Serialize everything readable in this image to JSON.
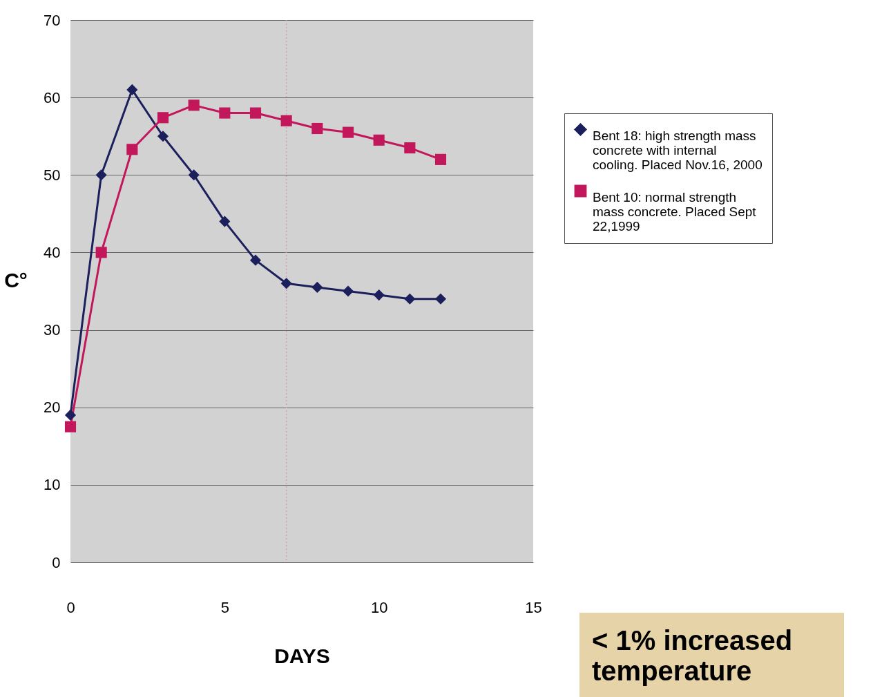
{
  "chart_data": {
    "type": "line",
    "xlabel": "DAYS",
    "ylabel": "C°",
    "xlim": [
      0,
      15
    ],
    "xticks": [
      0,
      5,
      10,
      15
    ],
    "ylim": [
      0,
      70
    ],
    "yticks": [
      0,
      10,
      20,
      30,
      40,
      50,
      60,
      70
    ],
    "grid": "y",
    "legend": "right",
    "series": [
      {
        "name": "Bent 18: high strength mass concrete with internal cooling. Placed Nov.16, 2000",
        "color": "#1b1f5c",
        "marker": "diamond",
        "x": [
          0,
          1,
          2,
          3,
          4,
          5,
          6,
          7,
          8,
          9,
          10,
          11,
          12
        ],
        "values": [
          19,
          50,
          61,
          55,
          50,
          44,
          39,
          36,
          35.5,
          35,
          34.5,
          34,
          34
        ]
      },
      {
        "name": "Bent 10: normal strength mass concrete. Placed Sept 22,1999",
        "color": "#c2185b",
        "marker": "square",
        "x": [
          0,
          1,
          2,
          3,
          4,
          5,
          6,
          7,
          8,
          9,
          10,
          11,
          12
        ],
        "values": [
          17.5,
          40,
          53.3,
          57.4,
          59,
          58,
          58,
          57,
          56,
          55.5,
          54.5,
          53.5,
          52
        ]
      }
    ],
    "ref_lines": [
      {
        "axis": "x",
        "value": 7,
        "color": "#d8a0b4",
        "line_style": "dotted"
      }
    ],
    "annotations": [
      "< 1% increased temperature"
    ]
  }
}
